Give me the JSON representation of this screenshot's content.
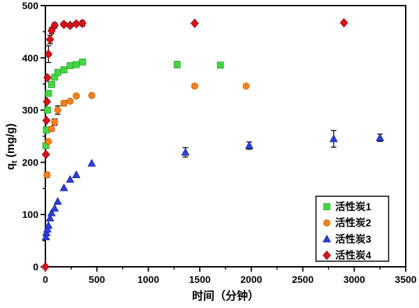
{
  "figure": {
    "background": "#ffffff",
    "axis_color": "#000000",
    "xlabel": "时间（分钟）",
    "ylabel": {
      "base": "q",
      "sub": "t",
      "rest": " (mg/g)"
    }
  },
  "chart_data": {
    "type": "scatter",
    "title": "",
    "xlabel": "时间（分钟）",
    "ylabel": "qt (mg/g)",
    "xlim": [
      0,
      3500
    ],
    "ylim": [
      0,
      500
    ],
    "x_major_ticks": [
      0,
      500,
      1000,
      1500,
      2000,
      2500,
      3000,
      3500
    ],
    "x_tick_labels": [
      "0",
      "500",
      "1000",
      "1500",
      "2000",
      "2500",
      "3000",
      "3500"
    ],
    "x_minor_ticks": [
      250,
      750,
      1250,
      1750,
      2250,
      2750,
      3250
    ],
    "y_major_ticks": [
      0,
      100,
      200,
      300,
      400,
      500
    ],
    "y_tick_labels": [
      "0",
      "100",
      "200",
      "300",
      "400",
      "500"
    ],
    "y_minor_ticks": [
      50,
      150,
      250,
      350,
      450
    ],
    "grid": false,
    "legend_position": "lower right",
    "errorbar_color": "#000000",
    "series": [
      {
        "name": "活性炭1",
        "marker": "square",
        "color": "#45d645",
        "edge": "#22a022",
        "points": [
          [
            5,
            232,
            0
          ],
          [
            10,
            262,
            4
          ],
          [
            20,
            300,
            5
          ],
          [
            30,
            332,
            0
          ],
          [
            60,
            349,
            4
          ],
          [
            90,
            363,
            5
          ],
          [
            120,
            372,
            4
          ],
          [
            180,
            377,
            4
          ],
          [
            240,
            385,
            3
          ],
          [
            300,
            387,
            4
          ],
          [
            360,
            392,
            0
          ],
          [
            1280,
            387,
            6
          ],
          [
            1700,
            386,
            0
          ]
        ]
      },
      {
        "name": "活性炭2",
        "marker": "circle",
        "color": "#f8821e",
        "edge": "#c55e00",
        "points": [
          [
            15,
            176,
            5
          ],
          [
            30,
            240,
            0
          ],
          [
            60,
            264,
            4
          ],
          [
            90,
            277,
            6
          ],
          [
            120,
            300,
            8
          ],
          [
            180,
            313,
            5
          ],
          [
            240,
            317,
            0
          ],
          [
            300,
            327,
            0
          ],
          [
            450,
            328,
            0
          ],
          [
            1450,
            346,
            0
          ],
          [
            1950,
            346,
            0
          ]
        ]
      },
      {
        "name": "活性炭3",
        "marker": "triangle",
        "color": "#2e3ed9",
        "edge": "#17259e",
        "points": [
          [
            5,
            57,
            0
          ],
          [
            10,
            65,
            0
          ],
          [
            20,
            72,
            0
          ],
          [
            30,
            79,
            0
          ],
          [
            45,
            93,
            0
          ],
          [
            60,
            103,
            0
          ],
          [
            90,
            112,
            0
          ],
          [
            120,
            125,
            0
          ],
          [
            180,
            151,
            0
          ],
          [
            240,
            167,
            0
          ],
          [
            300,
            176,
            0
          ],
          [
            450,
            198,
            0
          ],
          [
            1360,
            219,
            9
          ],
          [
            1980,
            232,
            7
          ],
          [
            2800,
            245,
            16
          ],
          [
            3250,
            247,
            7
          ]
        ]
      },
      {
        "name": "活性炭4",
        "marker": "diamond",
        "color": "#d8121a",
        "edge": "#8e0a10",
        "points": [
          [
            0,
            0,
            0
          ],
          [
            5,
            215,
            0
          ],
          [
            10,
            280,
            0
          ],
          [
            15,
            316,
            0
          ],
          [
            20,
            362,
            0
          ],
          [
            30,
            407,
            16
          ],
          [
            45,
            435,
            8
          ],
          [
            60,
            452,
            6
          ],
          [
            90,
            462,
            5
          ],
          [
            180,
            464,
            4
          ],
          [
            240,
            462,
            4
          ],
          [
            300,
            465,
            4
          ],
          [
            360,
            466,
            5
          ],
          [
            1450,
            466,
            0
          ],
          [
            2900,
            467,
            0
          ]
        ]
      }
    ],
    "legend": [
      "活性炭1",
      "活性炭2",
      "活性炭3",
      "活性炭4"
    ]
  }
}
